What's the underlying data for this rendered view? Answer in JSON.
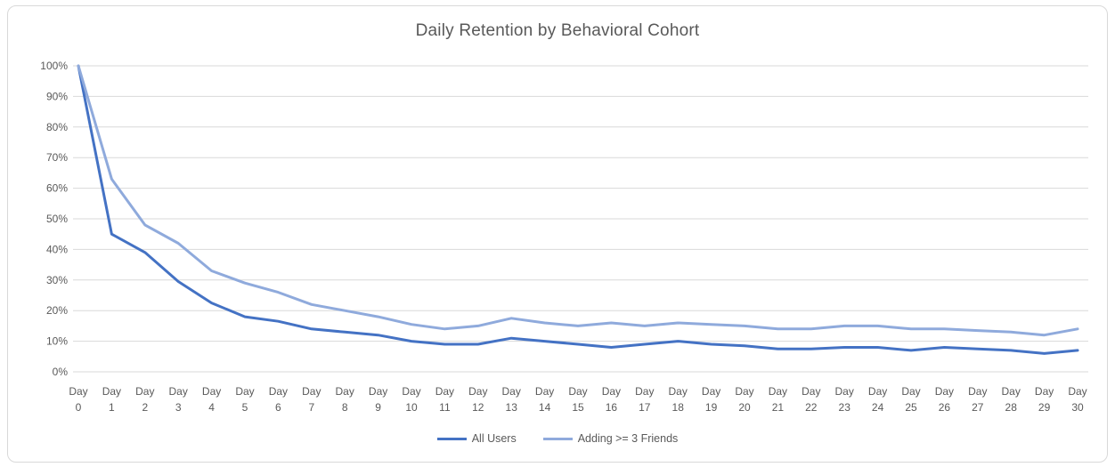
{
  "chart": {
    "title": "Daily Retention by Behavioral Cohort"
  },
  "chart_data": {
    "type": "line",
    "title": "Daily Retention by Behavioral Cohort",
    "categories": [
      "Day 0",
      "Day 1",
      "Day 2",
      "Day 3",
      "Day 4",
      "Day 5",
      "Day 6",
      "Day 7",
      "Day 8",
      "Day 9",
      "Day 10",
      "Day 11",
      "Day 12",
      "Day 13",
      "Day 14",
      "Day 15",
      "Day 16",
      "Day 17",
      "Day 18",
      "Day 19",
      "Day 20",
      "Day 21",
      "Day 22",
      "Day 23",
      "Day 24",
      "Day 25",
      "Day 26",
      "Day 27",
      "Day 28",
      "Day 29",
      "Day 30"
    ],
    "series": [
      {
        "name": "All Users",
        "color": "#4472C4",
        "values": [
          100,
          45,
          39,
          29.5,
          22.5,
          18,
          16.5,
          14,
          13,
          12,
          10,
          9,
          9,
          11,
          10,
          9,
          8,
          9,
          10,
          9,
          8.5,
          7.5,
          7.5,
          8,
          8,
          7,
          8,
          7.5,
          7,
          6,
          7
        ]
      },
      {
        "name": "Adding >= 3 Friends",
        "color": "#8FAADC",
        "values": [
          100,
          63,
          48,
          42,
          33,
          29,
          26,
          22,
          20,
          18,
          15.5,
          14,
          15,
          17.5,
          16,
          15,
          16,
          15,
          16,
          15.5,
          15,
          14,
          14,
          15,
          15,
          14,
          14,
          13.5,
          13,
          12,
          14
        ]
      }
    ],
    "ylim": [
      0,
      100
    ],
    "ytick_step": 10,
    "ytick_suffix": "%",
    "grid": "horizontal",
    "gridline_color": "#d9d9d9",
    "legend_position": "bottom",
    "text_color": "#595959"
  }
}
